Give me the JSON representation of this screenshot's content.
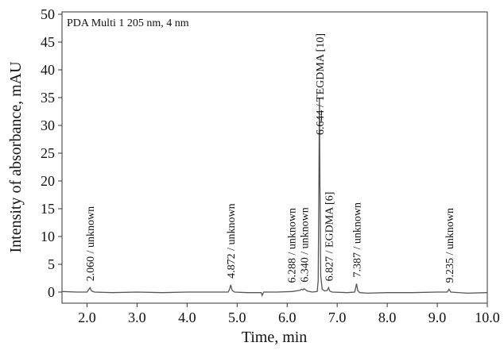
{
  "chart_data": {
    "type": "line",
    "detector_label": "PDA Multi 1 205 nm, 4 nm",
    "x_label": "Time, min",
    "y_label": "Intensity of absorbance, mAU",
    "color": "#555555",
    "xlim": [
      1.5,
      10.0
    ],
    "ylim": [
      -2,
      50
    ],
    "xticks": [
      {
        "value": 2,
        "label": "2.0"
      },
      {
        "value": 3,
        "label": "3.0"
      },
      {
        "value": 4,
        "label": "4.0"
      },
      {
        "value": 5,
        "label": "5.0"
      },
      {
        "value": 6,
        "label": "6.0"
      },
      {
        "value": 7,
        "label": "7.0"
      },
      {
        "value": 8,
        "label": "8.0"
      },
      {
        "value": 9,
        "label": "9.0"
      },
      {
        "value": 10,
        "label": "10.0"
      }
    ],
    "yticks": [
      0,
      5,
      10,
      15,
      20,
      25,
      30,
      35,
      40,
      45,
      50
    ],
    "x": [
      1.5,
      1.8,
      2.0,
      2.04,
      2.06,
      2.09,
      2.15,
      2.5,
      3.0,
      3.5,
      4.0,
      4.5,
      4.82,
      4.85,
      4.872,
      4.9,
      4.95,
      5.2,
      5.48,
      5.5,
      5.53,
      5.8,
      6.1,
      6.25,
      6.288,
      6.315,
      6.34,
      6.4,
      6.5,
      6.6,
      6.62,
      6.635,
      6.644,
      6.655,
      6.67,
      6.7,
      6.75,
      6.8,
      6.827,
      6.85,
      6.9,
      7.2,
      7.35,
      7.37,
      7.387,
      7.41,
      7.45,
      7.6,
      8.0,
      8.5,
      9.0,
      9.2,
      9.235,
      9.27,
      9.6,
      10.0
    ],
    "values": [
      0.1,
      0,
      0,
      0.5,
      0.8,
      0.2,
      0,
      -0.1,
      0,
      -0.1,
      0,
      0,
      0,
      0.5,
      1.3,
      0.3,
      0,
      -0.1,
      -0.1,
      -0.6,
      0,
      0,
      0.1,
      0.3,
      0.5,
      0.4,
      0.6,
      0.2,
      0,
      0.1,
      2,
      20,
      35,
      20,
      3,
      0.5,
      0.2,
      0.3,
      0.8,
      0.2,
      0,
      -0.1,
      0,
      0.8,
      1.5,
      0.3,
      -0.1,
      -0.2,
      -0.1,
      -0.1,
      0,
      0,
      0.5,
      0,
      -0.2,
      -0.1
    ],
    "annotations": [
      {
        "text": "2.060 / unknown",
        "x": 2.06
      },
      {
        "text": "4.872 / unknown",
        "x": 4.872
      },
      {
        "text": "6.288 / unknown",
        "x": 6.288
      },
      {
        "text": "6.340 / unknown",
        "x": 6.34
      },
      {
        "text": "6.644 / TEGDMA [10]",
        "x": 6.644
      },
      {
        "text": "6.827 / EGDMA [6]",
        "x": 6.827
      },
      {
        "text": "7.387 / unknown",
        "x": 7.387
      },
      {
        "text": "9.235 / unknown",
        "x": 9.235
      }
    ]
  }
}
